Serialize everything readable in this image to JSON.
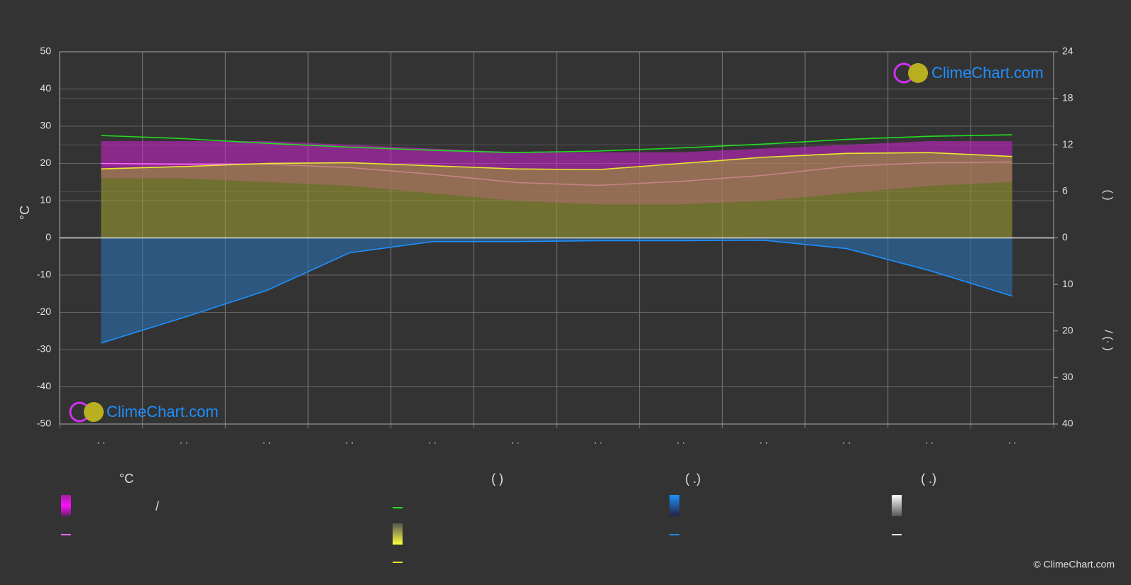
{
  "chart_data": {
    "type": "line",
    "y_label": "°C",
    "y2_label": "(        )",
    "y3_label": "/    (·   )",
    "categories": [
      ". .",
      ". .",
      ". .",
      ". .",
      ". .",
      ". .",
      ". .",
      ". .",
      ". .",
      ". .",
      ". .",
      ". ."
    ],
    "ylim": [
      -50,
      50
    ],
    "yticks": [
      50,
      40,
      30,
      20,
      10,
      0,
      -10,
      -20,
      -30,
      -40,
      -50
    ],
    "y2lim": [
      0,
      24
    ],
    "y2ticks": [
      24,
      18,
      12,
      6,
      0
    ],
    "y3lim": [
      0,
      40
    ],
    "y3ticks": [
      10,
      20,
      30,
      40
    ],
    "grid": true,
    "series": [
      {
        "color": "#d020d0",
        "axis": "y",
        "style": "band",
        "values_high": [
          26,
          26,
          26,
          25,
          24,
          23,
          23,
          23,
          24,
          25,
          26,
          26
        ],
        "values_low": [
          16,
          16,
          15,
          14,
          12,
          10,
          9,
          9,
          10,
          12,
          14,
          15
        ]
      },
      {
        "color": "#ff66ff",
        "axis": "y",
        "style": "line",
        "values": [
          20.0,
          19.8,
          19.8,
          18.9,
          17.1,
          14.9,
          14.1,
          15.2,
          16.8,
          19.2,
          20.2,
          20.4
        ]
      },
      {
        "color": "#9a9a30",
        "axis": "y2",
        "style": "area",
        "values": [
          8.9,
          9.2,
          9.6,
          9.7,
          9.3,
          8.9,
          8.8,
          9.6,
          10.4,
          10.9,
          11.0,
          10.5
        ]
      },
      {
        "color": "#22dd22",
        "axis": "y2",
        "style": "line",
        "values": [
          13.2,
          12.8,
          12.2,
          11.7,
          11.3,
          11.0,
          11.2,
          11.6,
          12.1,
          12.7,
          13.1,
          13.3
        ]
      },
      {
        "color": "#2a6fb0",
        "axis": "y3",
        "style": "area",
        "values": [
          22.6,
          17.1,
          11.3,
          3.2,
          0.8,
          0.8,
          0.6,
          0.6,
          0.5,
          2.3,
          7.0,
          12.5
        ]
      }
    ],
    "legend": {
      "headers": [
        "°C",
        "(          )",
        "(   .)",
        "(   .)"
      ],
      "texts": [
        "/"
      ]
    },
    "watermark": "ClimeChart.com",
    "copyright": "© ClimeChart.com"
  }
}
